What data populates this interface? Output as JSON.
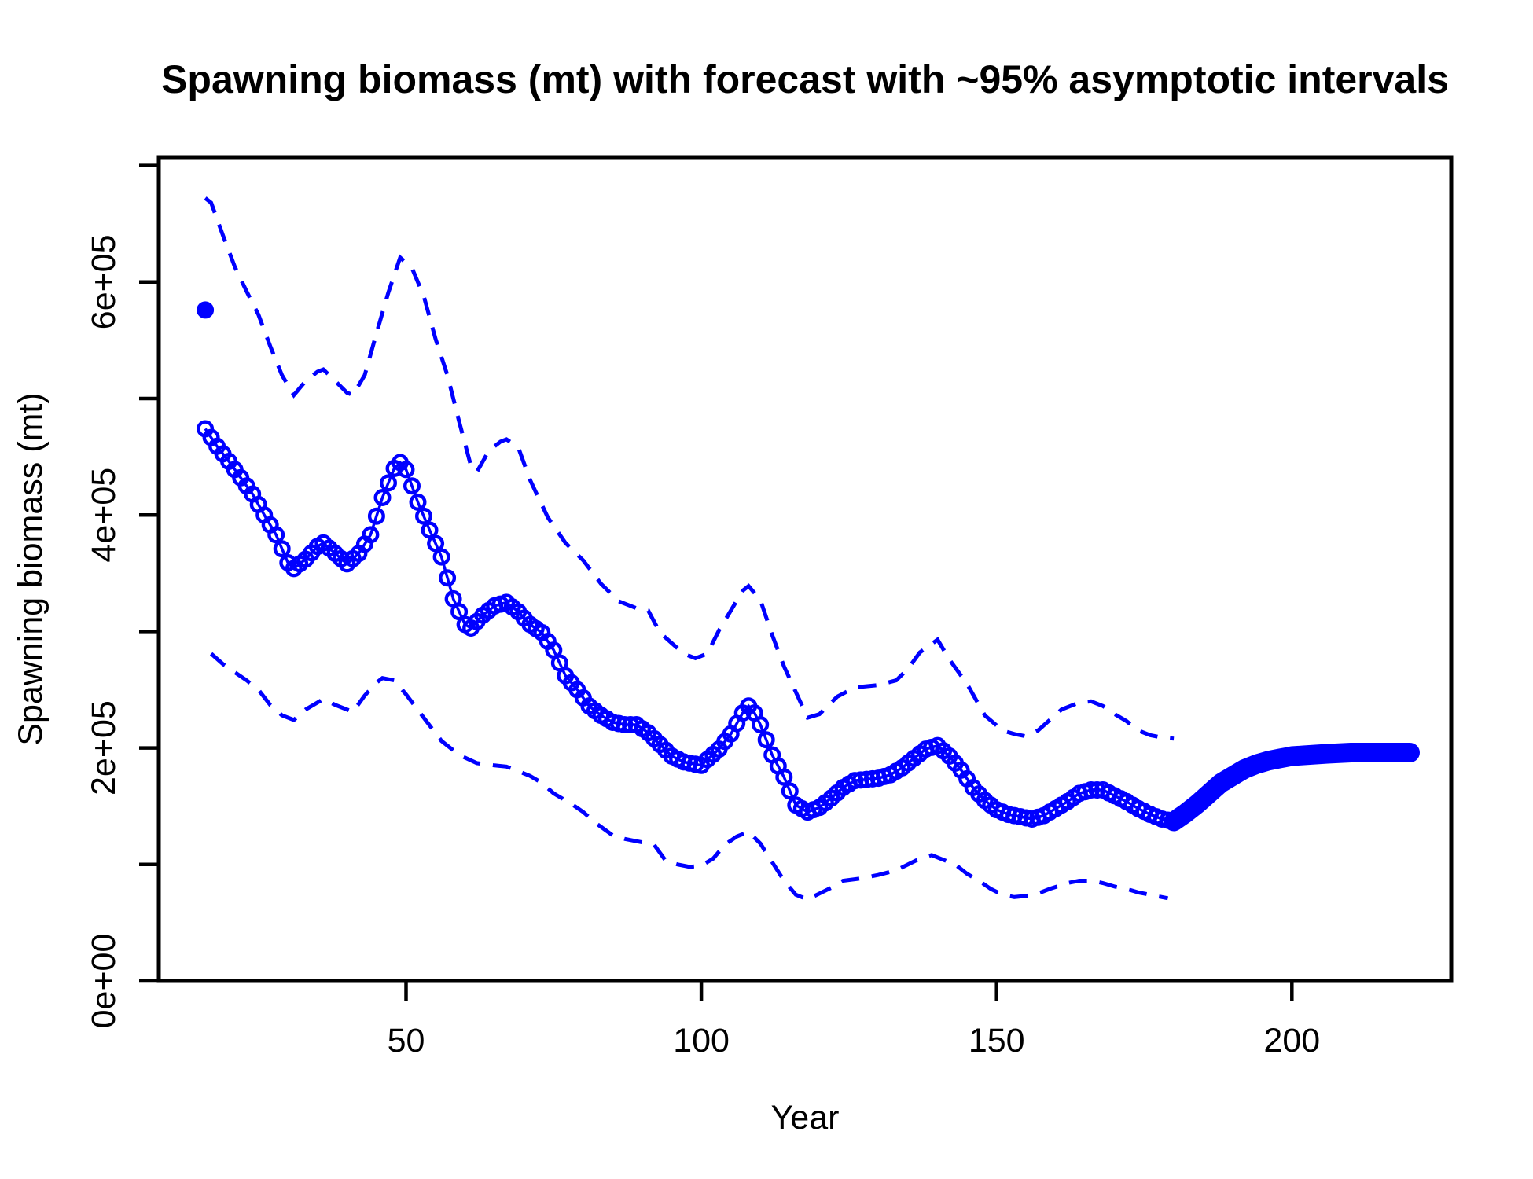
{
  "title": "Spawning biomass (mt) with forecast with ~95% asymptotic intervals",
  "axes": {
    "x": {
      "label": "Year",
      "ticks": [
        50,
        100,
        150,
        200
      ]
    },
    "y": {
      "label": "Spawning biomass (mt)",
      "major_ticks": [
        {
          "value": 0,
          "label": "0e+00"
        },
        {
          "value": 200000,
          "label": "2e+05"
        },
        {
          "value": 400000,
          "label": "4e+05"
        },
        {
          "value": 600000,
          "label": "6e+05"
        }
      ],
      "minor_ticks": [
        100000,
        300000,
        500000,
        700000
      ]
    }
  },
  "colors": {
    "series": "#0000FF",
    "axis": "#000000",
    "background": "#FFFFFF"
  },
  "chart_data": {
    "type": "line",
    "title": "Spawning biomass (mt) with forecast with ~95% asymptotic intervals",
    "xlabel": "Year",
    "ylabel": "Spawning biomass (mt)",
    "xlim": [
      8,
      227
    ],
    "ylim": [
      0,
      707000
    ],
    "grid": false,
    "legend": "none",
    "series": [
      {
        "name": "virgin-biomass-point",
        "marker": "filled-circle",
        "color": "#0000FF",
        "points": [
          [
            16,
            576000
          ]
        ]
      },
      {
        "name": "spawning-biomass-estimate",
        "marker": "open-circle",
        "style": "solid-line-with-markers",
        "color": "#0000FF",
        "points": [
          [
            16,
            474000
          ],
          [
            18,
            459000
          ],
          [
            20,
            446000
          ],
          [
            22,
            432000
          ],
          [
            24,
            418000
          ],
          [
            26,
            400000
          ],
          [
            28,
            383000
          ],
          [
            30,
            359000
          ],
          [
            31,
            354000
          ],
          [
            33,
            362000
          ],
          [
            35,
            373000
          ],
          [
            36,
            376000
          ],
          [
            38,
            367000
          ],
          [
            40,
            358000
          ],
          [
            42,
            367000
          ],
          [
            44,
            383000
          ],
          [
            46,
            415000
          ],
          [
            48,
            440000
          ],
          [
            49,
            445000
          ],
          [
            50,
            439000
          ],
          [
            52,
            411000
          ],
          [
            54,
            387000
          ],
          [
            56,
            364000
          ],
          [
            58,
            328000
          ],
          [
            60,
            306000
          ],
          [
            61,
            303000
          ],
          [
            63,
            314000
          ],
          [
            65,
            322000
          ],
          [
            67,
            325000
          ],
          [
            69,
            317000
          ],
          [
            71,
            306000
          ],
          [
            73,
            299000
          ],
          [
            75,
            284000
          ],
          [
            77,
            262000
          ],
          [
            79,
            250000
          ],
          [
            81,
            236000
          ],
          [
            83,
            228000
          ],
          [
            85,
            222000
          ],
          [
            87,
            220000
          ],
          [
            89,
            220000
          ],
          [
            91,
            213000
          ],
          [
            93,
            203000
          ],
          [
            95,
            193000
          ],
          [
            97,
            188000
          ],
          [
            99,
            186000
          ],
          [
            100,
            185000
          ],
          [
            101,
            190000
          ],
          [
            103,
            199000
          ],
          [
            105,
            212000
          ],
          [
            107,
            230000
          ],
          [
            108,
            236000
          ],
          [
            109,
            230000
          ],
          [
            110,
            220000
          ],
          [
            112,
            194000
          ],
          [
            114,
            175000
          ],
          [
            116,
            151000
          ],
          [
            118,
            145000
          ],
          [
            120,
            149000
          ],
          [
            122,
            157000
          ],
          [
            124,
            166000
          ],
          [
            126,
            172000
          ],
          [
            128,
            173000
          ],
          [
            130,
            174000
          ],
          [
            132,
            177000
          ],
          [
            134,
            183000
          ],
          [
            136,
            191000
          ],
          [
            138,
            199000
          ],
          [
            140,
            202000
          ],
          [
            142,
            193000
          ],
          [
            144,
            181000
          ],
          [
            146,
            166000
          ],
          [
            148,
            155000
          ],
          [
            150,
            147000
          ],
          [
            152,
            143000
          ],
          [
            154,
            141000
          ],
          [
            156,
            139000
          ],
          [
            158,
            142000
          ],
          [
            160,
            148000
          ],
          [
            162,
            154000
          ],
          [
            164,
            161000
          ],
          [
            166,
            164000
          ],
          [
            168,
            164000
          ],
          [
            170,
            159000
          ],
          [
            172,
            154000
          ],
          [
            174,
            148000
          ],
          [
            176,
            143000
          ],
          [
            178,
            139000
          ],
          [
            180,
            137000
          ]
        ]
      },
      {
        "name": "forecast",
        "marker": "filled-circle",
        "style": "solid-thick-band",
        "color": "#0000FF",
        "points": [
          [
            180,
            137000
          ],
          [
            182,
            144000
          ],
          [
            184,
            152000
          ],
          [
            186,
            161000
          ],
          [
            188,
            170000
          ],
          [
            190,
            176000
          ],
          [
            192,
            182000
          ],
          [
            194,
            186000
          ],
          [
            196,
            189000
          ],
          [
            198,
            191000
          ],
          [
            200,
            193000
          ],
          [
            203,
            194000
          ],
          [
            206,
            195000
          ],
          [
            210,
            196000
          ],
          [
            214,
            196000
          ],
          [
            217,
            196000
          ],
          [
            220,
            196000
          ]
        ]
      },
      {
        "name": "upper-95-interval",
        "style": "dashed",
        "color": "#0000FF",
        "points": [
          [
            16,
            672000
          ],
          [
            17,
            668000
          ],
          [
            19,
            640000
          ],
          [
            21,
            613000
          ],
          [
            23,
            592000
          ],
          [
            25,
            572000
          ],
          [
            27,
            545000
          ],
          [
            29,
            520000
          ],
          [
            31,
            503000
          ],
          [
            33,
            515000
          ],
          [
            35,
            523000
          ],
          [
            36,
            525000
          ],
          [
            38,
            515000
          ],
          [
            40,
            505000
          ],
          [
            41,
            503000
          ],
          [
            43,
            520000
          ],
          [
            45,
            556000
          ],
          [
            47,
            591000
          ],
          [
            49,
            621000
          ],
          [
            51,
            612000
          ],
          [
            53,
            588000
          ],
          [
            55,
            551000
          ],
          [
            57,
            520000
          ],
          [
            59,
            480000
          ],
          [
            61,
            442000
          ],
          [
            62,
            437000
          ],
          [
            64,
            455000
          ],
          [
            66,
            463000
          ],
          [
            67,
            465000
          ],
          [
            69,
            458000
          ],
          [
            71,
            430000
          ],
          [
            74,
            398000
          ],
          [
            77,
            376000
          ],
          [
            80,
            361000
          ],
          [
            83,
            341000
          ],
          [
            86,
            326000
          ],
          [
            89,
            320000
          ],
          [
            91,
            318000
          ],
          [
            93,
            299000
          ],
          [
            95,
            290000
          ],
          [
            97,
            281000
          ],
          [
            99,
            277000
          ],
          [
            101,
            281000
          ],
          [
            103,
            301000
          ],
          [
            105,
            318000
          ],
          [
            107,
            335000
          ],
          [
            108,
            339000
          ],
          [
            110,
            327000
          ],
          [
            112,
            297000
          ],
          [
            114,
            270000
          ],
          [
            116,
            248000
          ],
          [
            118,
            226000
          ],
          [
            120,
            229000
          ],
          [
            123,
            244000
          ],
          [
            126,
            252000
          ],
          [
            130,
            254000
          ],
          [
            133,
            258000
          ],
          [
            135,
            268000
          ],
          [
            137,
            282000
          ],
          [
            140,
            293000
          ],
          [
            142,
            276000
          ],
          [
            145,
            255000
          ],
          [
            148,
            228000
          ],
          [
            151,
            215000
          ],
          [
            153,
            212000
          ],
          [
            155,
            210000
          ],
          [
            157,
            215000
          ],
          [
            159,
            224000
          ],
          [
            161,
            233000
          ],
          [
            164,
            239000
          ],
          [
            166,
            240000
          ],
          [
            168,
            236000
          ],
          [
            170,
            229000
          ],
          [
            172,
            223000
          ],
          [
            174,
            215000
          ],
          [
            176,
            211000
          ],
          [
            178,
            209000
          ],
          [
            180,
            208000
          ]
        ]
      },
      {
        "name": "lower-95-interval",
        "style": "dashed",
        "color": "#0000FF",
        "points": [
          [
            17,
            281000
          ],
          [
            19,
            272000
          ],
          [
            21,
            265000
          ],
          [
            23,
            258000
          ],
          [
            25,
            250000
          ],
          [
            27,
            237000
          ],
          [
            29,
            228000
          ],
          [
            31,
            224000
          ],
          [
            33,
            233000
          ],
          [
            36,
            242000
          ],
          [
            38,
            237000
          ],
          [
            41,
            231000
          ],
          [
            43,
            245000
          ],
          [
            45,
            256000
          ],
          [
            46,
            260000
          ],
          [
            48,
            258000
          ],
          [
            50,
            246000
          ],
          [
            53,
            226000
          ],
          [
            56,
            206000
          ],
          [
            59,
            194000
          ],
          [
            62,
            187000
          ],
          [
            65,
            185000
          ],
          [
            67,
            184000
          ],
          [
            69,
            180000
          ],
          [
            71,
            176000
          ],
          [
            73,
            170000
          ],
          [
            75,
            161000
          ],
          [
            78,
            152000
          ],
          [
            80,
            145000
          ],
          [
            82,
            136000
          ],
          [
            85,
            125000
          ],
          [
            87,
            122000
          ],
          [
            89,
            120000
          ],
          [
            92,
            117000
          ],
          [
            94,
            103000
          ],
          [
            96,
            100000
          ],
          [
            98,
            98000
          ],
          [
            100,
            99000
          ],
          [
            102,
            105000
          ],
          [
            104,
            117000
          ],
          [
            106,
            124000
          ],
          [
            108,
            128000
          ],
          [
            110,
            118000
          ],
          [
            112,
            102000
          ],
          [
            114,
            86000
          ],
          [
            116,
            74000
          ],
          [
            118,
            70000
          ],
          [
            120,
            75000
          ],
          [
            122,
            80000
          ],
          [
            124,
            86000
          ],
          [
            127,
            88000
          ],
          [
            130,
            91000
          ],
          [
            133,
            95000
          ],
          [
            135,
            100000
          ],
          [
            137,
            105000
          ],
          [
            139,
            108000
          ],
          [
            141,
            104000
          ],
          [
            143,
            100000
          ],
          [
            145,
            92000
          ],
          [
            147,
            86000
          ],
          [
            149,
            79000
          ],
          [
            151,
            74000
          ],
          [
            153,
            72000
          ],
          [
            155,
            73000
          ],
          [
            157,
            75000
          ],
          [
            159,
            79000
          ],
          [
            162,
            84000
          ],
          [
            164,
            86000
          ],
          [
            166,
            86000
          ],
          [
            168,
            84000
          ],
          [
            170,
            81000
          ],
          [
            172,
            79000
          ],
          [
            174,
            76000
          ],
          [
            176,
            74000
          ],
          [
            178,
            72000
          ],
          [
            179,
            71000
          ]
        ]
      }
    ]
  }
}
